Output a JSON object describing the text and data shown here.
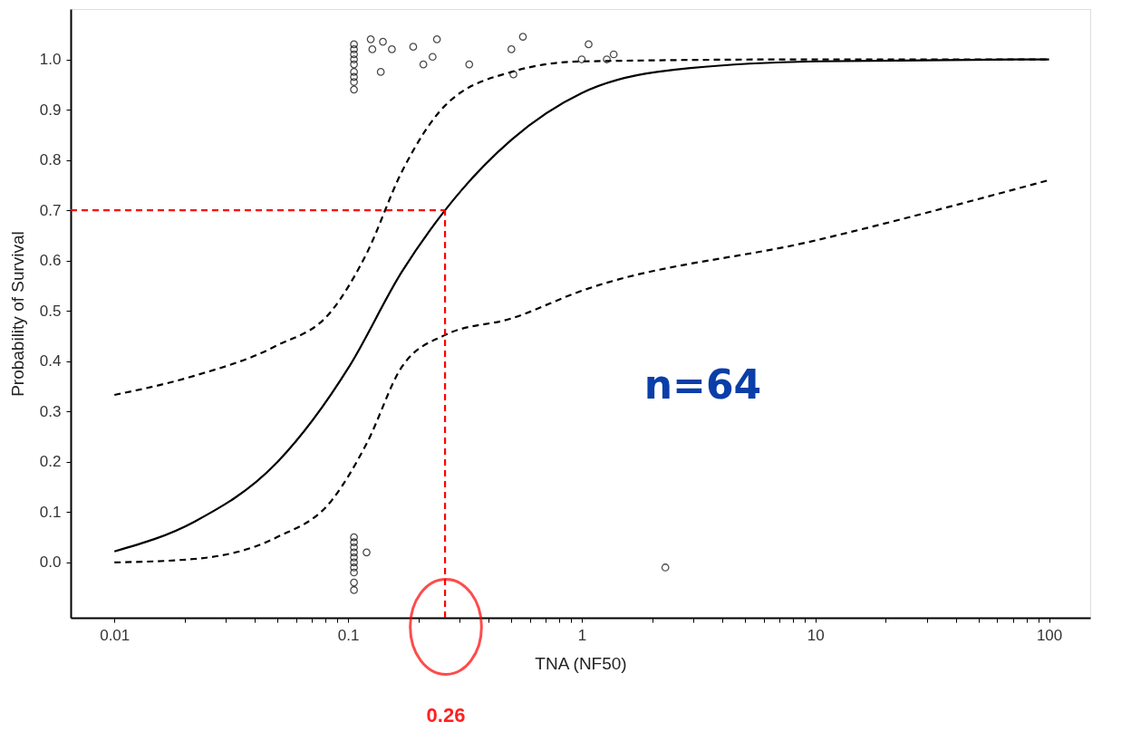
{
  "chart_data": {
    "type": "scatter",
    "xlabel": "TNA (NF50)",
    "ylabel": "Probability of Survival",
    "log": "x",
    "grid": false,
    "xlim": [
      0.0065,
      150
    ],
    "ylim": [
      -0.11,
      1.1
    ],
    "xticks": [
      0.01,
      {
        "value": 0.02,
        "label": null
      },
      {
        "value": 0.03,
        "label": null
      },
      {
        "value": 0.04,
        "label": null
      },
      {
        "value": 0.05,
        "label": null
      },
      {
        "value": 0.06,
        "label": null
      },
      {
        "value": 0.07,
        "label": null
      },
      {
        "value": 0.08,
        "label": null
      },
      {
        "value": 0.09,
        "label": null
      },
      0.1,
      {
        "value": 0.2,
        "label": null
      },
      {
        "value": 0.3,
        "label": null
      },
      {
        "value": 0.4,
        "label": null
      },
      {
        "value": 0.5,
        "label": null
      },
      {
        "value": 0.6,
        "label": null
      },
      {
        "value": 0.7,
        "label": null
      },
      {
        "value": 0.8,
        "label": null
      },
      {
        "value": 0.9,
        "label": null
      },
      1,
      {
        "value": 2,
        "label": null
      },
      {
        "value": 3,
        "label": null
      },
      {
        "value": 4,
        "label": null
      },
      {
        "value": 5,
        "label": null
      },
      {
        "value": 6,
        "label": null
      },
      {
        "value": 7,
        "label": null
      },
      {
        "value": 8,
        "label": null
      },
      {
        "value": 9,
        "label": null
      },
      10,
      {
        "value": 20,
        "label": null
      },
      {
        "value": 30,
        "label": null
      },
      {
        "value": 40,
        "label": null
      },
      {
        "value": 50,
        "label": null
      },
      {
        "value": 60,
        "label": null
      },
      {
        "value": 70,
        "label": null
      },
      {
        "value": 80,
        "label": null
      },
      {
        "value": 90,
        "label": null
      },
      100
    ],
    "yticks": [
      {
        "value": 0,
        "label": "0.0"
      },
      0.1,
      0.2,
      0.3,
      0.4,
      0.5,
      0.6,
      0.7,
      0.8,
      0.9,
      {
        "value": 1,
        "label": "1.0"
      }
    ],
    "series": [
      {
        "marker": "circle",
        "color": "#000000",
        "x": [
          0.106,
          0.106,
          0.106,
          0.106,
          0.106,
          0.106,
          0.106,
          0.106,
          0.106,
          0.125,
          0.127,
          0.138,
          0.141,
          0.154,
          0.19,
          0.21,
          0.23,
          0.24,
          0.33,
          0.5,
          0.51,
          0.56,
          1.0,
          1.07,
          1.28,
          1.37,
          0.106,
          0.106,
          0.106,
          0.106,
          0.106,
          0.106,
          0.106,
          0.106,
          0.106,
          0.106,
          0.12,
          2.28
        ],
        "values": [
          1.03,
          1.02,
          1.01,
          1.0,
          0.99,
          0.975,
          0.965,
          0.955,
          0.94,
          1.04,
          1.02,
          0.975,
          1.035,
          1.02,
          1.025,
          0.99,
          1.005,
          1.04,
          0.99,
          1.02,
          0.97,
          1.045,
          1.0,
          1.03,
          1.0,
          1.01,
          0.05,
          0.04,
          0.03,
          0.02,
          0.01,
          0.0,
          -0.01,
          -0.02,
          -0.04,
          -0.055,
          0.02,
          -0.01
        ]
      },
      {
        "type": "line",
        "color": "#000000",
        "line_style": "solid",
        "x": [
          0.01,
          0.022,
          0.049,
          0.101,
          0.17,
          0.26,
          0.5,
          1,
          2.1,
          10,
          100
        ],
        "values": [
          0.022,
          0.081,
          0.196,
          0.389,
          0.578,
          0.7,
          0.84,
          0.933,
          0.975,
          0.996,
          1.0
        ]
      },
      {
        "type": "line",
        "color": "#000000",
        "line_style": "dashed",
        "x": [
          0.01,
          0.022,
          0.049,
          0.085,
          0.12,
          0.17,
          0.26,
          0.5,
          1,
          10,
          100
        ],
        "values": [
          0.333,
          0.371,
          0.43,
          0.5,
          0.614,
          0.777,
          0.908,
          0.975,
          0.996,
          1.0,
          1.0
        ]
      },
      {
        "type": "line",
        "color": "#000000",
        "line_style": "dashed",
        "x": [
          0.01,
          0.022,
          0.049,
          0.085,
          0.12,
          0.17,
          0.26,
          0.5,
          1,
          10,
          100
        ],
        "values": [
          0.0,
          0.007,
          0.049,
          0.123,
          0.236,
          0.389,
          0.452,
          0.485,
          0.54,
          0.64,
          0.76
        ]
      },
      {
        "type": "line",
        "color": "#ff0000",
        "line_style": "dashed",
        "x": [
          0.0065,
          0.26
        ],
        "values": [
          0.7,
          0.7
        ]
      },
      {
        "type": "line",
        "color": "#ff0000",
        "line_style": "dashed",
        "x": [
          0.26,
          0.26
        ],
        "values": [
          -0.11,
          0.7
        ]
      }
    ],
    "annotations": [
      "n=64",
      "0.26"
    ]
  }
}
